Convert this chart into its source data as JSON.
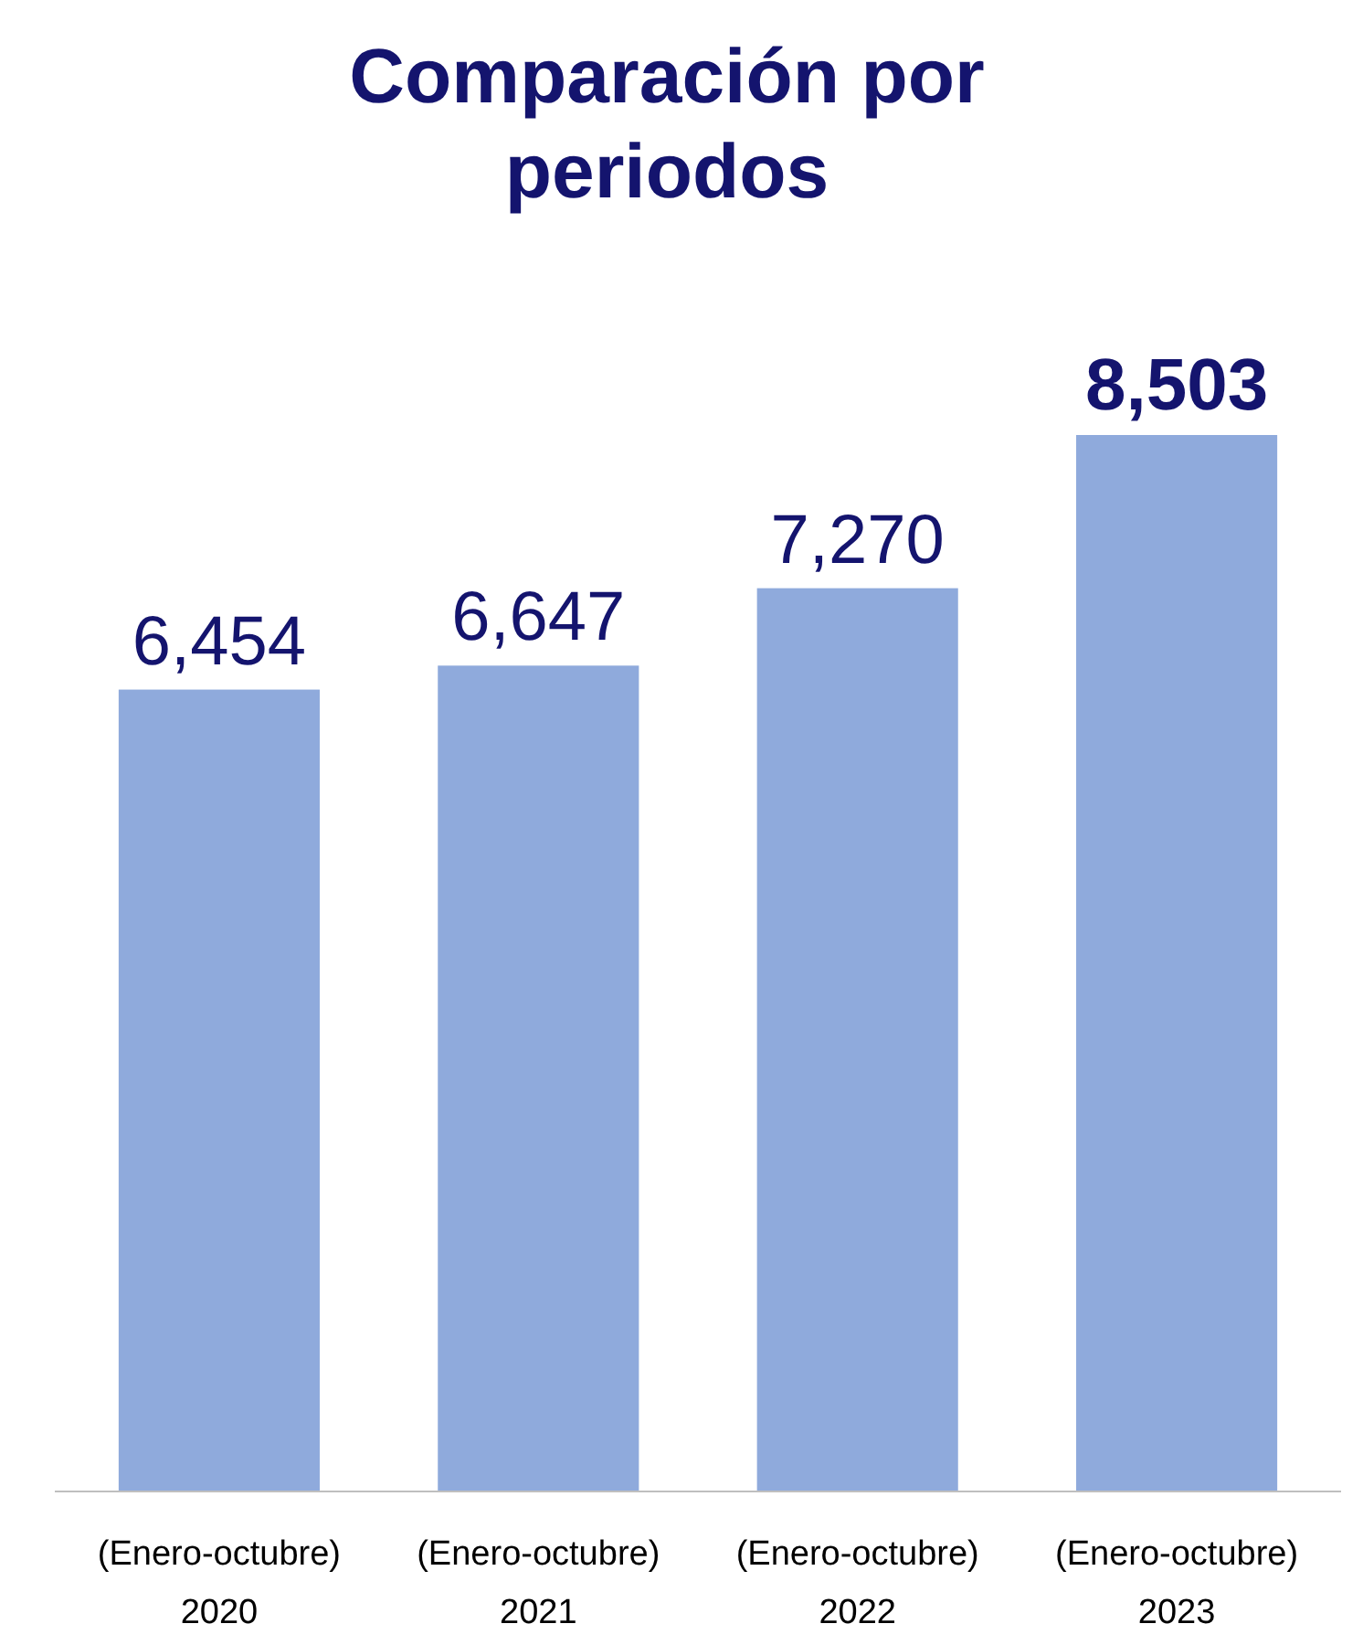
{
  "chart_data": {
    "type": "bar",
    "title": "Comparación por periodos",
    "categories": [
      "(Enero-octubre)\n2020",
      "(Enero-octubre)\n2021",
      "(Enero-octubre)\n2022",
      "(Enero-octubre)\n2023"
    ],
    "values": [
      6454,
      6647,
      7270,
      8503
    ],
    "value_labels": [
      "6,454",
      "6,647",
      "7,270",
      "8,503"
    ],
    "color": "#8faadc"
  }
}
